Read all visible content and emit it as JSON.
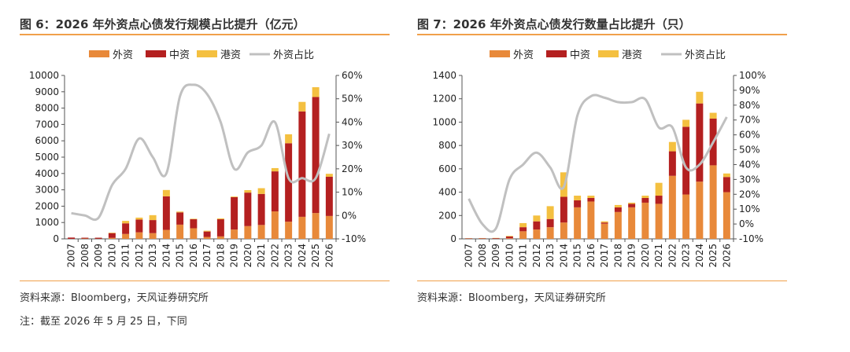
{
  "charts": [
    {
      "title": "图 6：2026 年外资点心债发行规模占比提升（亿元）",
      "source": "资料来源：Bloomberg，天风证券研究所"
    },
    {
      "title": "图 7：2026 年外资点心债发行数量占比提升（只）",
      "source": "资料来源：Bloomberg，天风证券研究所"
    }
  ],
  "note": "注：截至 2026 年 5 月 25 日，下同",
  "colors": {
    "foreign": "#e8893a",
    "chinese": "#b42020",
    "hk": "#f4c040",
    "share": "#c0c0c0",
    "rule": "#f0a04b"
  },
  "chart_data": [
    {
      "type": "bar",
      "stacked": true,
      "secondary_line": true,
      "categories": [
        "2007",
        "2008",
        "2009",
        "2010",
        "2011",
        "2012",
        "2013",
        "2014",
        "2015",
        "2016",
        "2017",
        "2018",
        "2019",
        "2020",
        "2021",
        "2022",
        "2023",
        "2024",
        "2025",
        "2026"
      ],
      "series": [
        {
          "name": "外资",
          "kind": "bar",
          "axis": "left",
          "values": [
            0,
            20,
            10,
            60,
            300,
            400,
            350,
            550,
            870,
            650,
            120,
            150,
            570,
            780,
            850,
            1680,
            1050,
            1350,
            1580,
            1400
          ]
        },
        {
          "name": "中资",
          "kind": "bar",
          "axis": "left",
          "values": [
            80,
            50,
            60,
            290,
            650,
            780,
            800,
            2050,
            750,
            550,
            330,
            1050,
            1980,
            2050,
            1900,
            2450,
            4800,
            6450,
            7100,
            2400
          ]
        },
        {
          "name": "港资",
          "kind": "bar",
          "axis": "left",
          "values": [
            0,
            0,
            0,
            30,
            150,
            120,
            300,
            390,
            50,
            30,
            50,
            50,
            40,
            150,
            350,
            200,
            550,
            580,
            600,
            180
          ]
        },
        {
          "name": "外资占比",
          "kind": "line",
          "axis": "right",
          "values": [
            1,
            0,
            -1,
            13,
            20,
            33,
            25,
            18,
            51,
            56,
            52,
            40,
            20,
            27,
            30,
            40,
            16,
            16,
            16,
            35
          ]
        }
      ],
      "y_left": {
        "min": 0,
        "max": 10000,
        "step": 1000,
        "tick_labels": [
          "0",
          "1000",
          "2000",
          "3000",
          "4000",
          "5000",
          "6000",
          "7000",
          "8000",
          "9000",
          "10000"
        ]
      },
      "y_right": {
        "min": -10,
        "max": 60,
        "step": 10,
        "tick_labels": [
          "-10%",
          "0%",
          "10%",
          "20%",
          "30%",
          "40%",
          "50%",
          "60%"
        ]
      },
      "legend_position": "top",
      "grid": false
    },
    {
      "type": "bar",
      "stacked": true,
      "secondary_line": true,
      "categories": [
        "2007",
        "2008",
        "2009",
        "2010",
        "2011",
        "2012",
        "2013",
        "2014",
        "2015",
        "2016",
        "2017",
        "2018",
        "2019",
        "2020",
        "2021",
        "2022",
        "2023",
        "2024",
        "2025",
        "2026"
      ],
      "series": [
        {
          "name": "外资",
          "kind": "bar",
          "axis": "left",
          "values": [
            2,
            1,
            1,
            5,
            65,
            80,
            100,
            140,
            270,
            320,
            130,
            230,
            270,
            310,
            300,
            540,
            380,
            490,
            630,
            400
          ]
        },
        {
          "name": "中资",
          "kind": "bar",
          "axis": "left",
          "values": [
            3,
            4,
            5,
            15,
            35,
            70,
            70,
            220,
            60,
            30,
            10,
            40,
            30,
            40,
            70,
            210,
            580,
            670,
            400,
            130
          ]
        },
        {
          "name": "港资",
          "kind": "bar",
          "axis": "left",
          "values": [
            1,
            2,
            2,
            5,
            35,
            50,
            110,
            210,
            40,
            20,
            10,
            20,
            10,
            20,
            110,
            80,
            60,
            100,
            50,
            30
          ]
        },
        {
          "name": "外资占比",
          "kind": "line",
          "axis": "right",
          "values": [
            17,
            0,
            -3,
            30,
            40,
            48,
            38,
            25,
            73,
            86,
            85,
            82,
            82,
            84,
            65,
            65,
            38,
            40,
            55,
            72
          ]
        }
      ],
      "y_left": {
        "min": 0,
        "max": 1400,
        "step": 200,
        "tick_labels": [
          "0",
          "200",
          "400",
          "600",
          "800",
          "1000",
          "1200",
          "1400"
        ]
      },
      "y_right": {
        "min": -10,
        "max": 100,
        "step": 10,
        "tick_labels": [
          "-10%",
          "0%",
          "10%",
          "20%",
          "30%",
          "40%",
          "50%",
          "60%",
          "70%",
          "80%",
          "90%",
          "100%"
        ]
      },
      "legend_position": "top",
      "grid": false
    }
  ]
}
